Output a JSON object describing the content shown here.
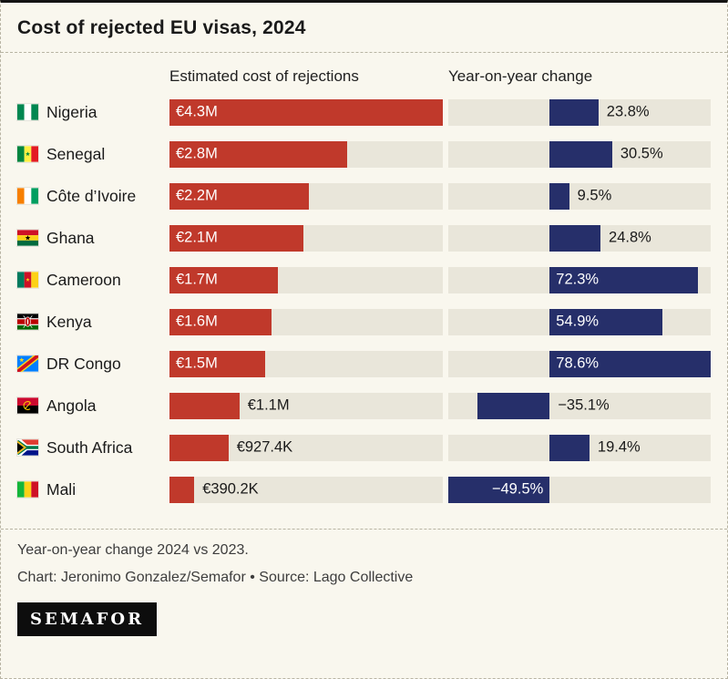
{
  "title": "Cost of rejected EU visas, 2024",
  "columns": {
    "cost_header": "Estimated cost of rejections",
    "yoy_header": "Year-on-year change"
  },
  "chart_data": {
    "type": "bar",
    "orientation": "horizontal",
    "title": "Cost of rejected EU visas, 2024",
    "cost_axis_max_eur_m": 4.3,
    "yoy_axis_range": [
      -49.5,
      78.6
    ],
    "series": [
      {
        "name": "Estimated cost of rejections",
        "unit": "EUR"
      },
      {
        "name": "Year-on-year change",
        "unit": "%"
      }
    ],
    "rows": [
      {
        "country": "Nigeria",
        "flag": "nigeria",
        "cost_label": "€4.3M",
        "cost_value_eur_m": 4.3,
        "cost_label_inside": true,
        "yoy_label": "23.8%",
        "yoy_pct": 23.8,
        "yoy_label_inside": false
      },
      {
        "country": "Senegal",
        "flag": "senegal",
        "cost_label": "€2.8M",
        "cost_value_eur_m": 2.8,
        "cost_label_inside": true,
        "yoy_label": "30.5%",
        "yoy_pct": 30.5,
        "yoy_label_inside": false
      },
      {
        "country": "Côte d’Ivoire",
        "flag": "cote-divoire",
        "cost_label": "€2.2M",
        "cost_value_eur_m": 2.2,
        "cost_label_inside": true,
        "yoy_label": "9.5%",
        "yoy_pct": 9.5,
        "yoy_label_inside": false
      },
      {
        "country": "Ghana",
        "flag": "ghana",
        "cost_label": "€2.1M",
        "cost_value_eur_m": 2.1,
        "cost_label_inside": true,
        "yoy_label": "24.8%",
        "yoy_pct": 24.8,
        "yoy_label_inside": false
      },
      {
        "country": "Cameroon",
        "flag": "cameroon",
        "cost_label": "€1.7M",
        "cost_value_eur_m": 1.7,
        "cost_label_inside": true,
        "yoy_label": "72.3%",
        "yoy_pct": 72.3,
        "yoy_label_inside": true
      },
      {
        "country": "Kenya",
        "flag": "kenya",
        "cost_label": "€1.6M",
        "cost_value_eur_m": 1.6,
        "cost_label_inside": true,
        "yoy_label": "54.9%",
        "yoy_pct": 54.9,
        "yoy_label_inside": true
      },
      {
        "country": "DR Congo",
        "flag": "dr-congo",
        "cost_label": "€1.5M",
        "cost_value_eur_m": 1.5,
        "cost_label_inside": true,
        "yoy_label": "78.6%",
        "yoy_pct": 78.6,
        "yoy_label_inside": true
      },
      {
        "country": "Angola",
        "flag": "angola",
        "cost_label": "€1.1M",
        "cost_value_eur_m": 1.1,
        "cost_label_inside": false,
        "yoy_label": "−35.1%",
        "yoy_pct": -35.1,
        "yoy_label_inside": false
      },
      {
        "country": "South Africa",
        "flag": "south-africa",
        "cost_label": "€927.4K",
        "cost_value_eur_m": 0.9274,
        "cost_label_inside": false,
        "yoy_label": "19.4%",
        "yoy_pct": 19.4,
        "yoy_label_inside": false
      },
      {
        "country": "Mali",
        "flag": "mali",
        "cost_label": "€390.2K",
        "cost_value_eur_m": 0.3902,
        "cost_label_inside": false,
        "yoy_label": "−49.5%",
        "yoy_pct": -49.5,
        "yoy_label_inside": true
      }
    ]
  },
  "footer": {
    "note": "Year-on-year change 2024 vs 2023.",
    "credit": "Chart: Jeronimo Gonzalez/Semafor • Source: Lago Collective",
    "logo": "SEMAFOR"
  },
  "colors": {
    "background": "#f9f7ee",
    "track": "#e9e6da",
    "cost_bar": "#c0392b",
    "yoy_bar": "#262f6a",
    "text": "#1a1a1a"
  }
}
